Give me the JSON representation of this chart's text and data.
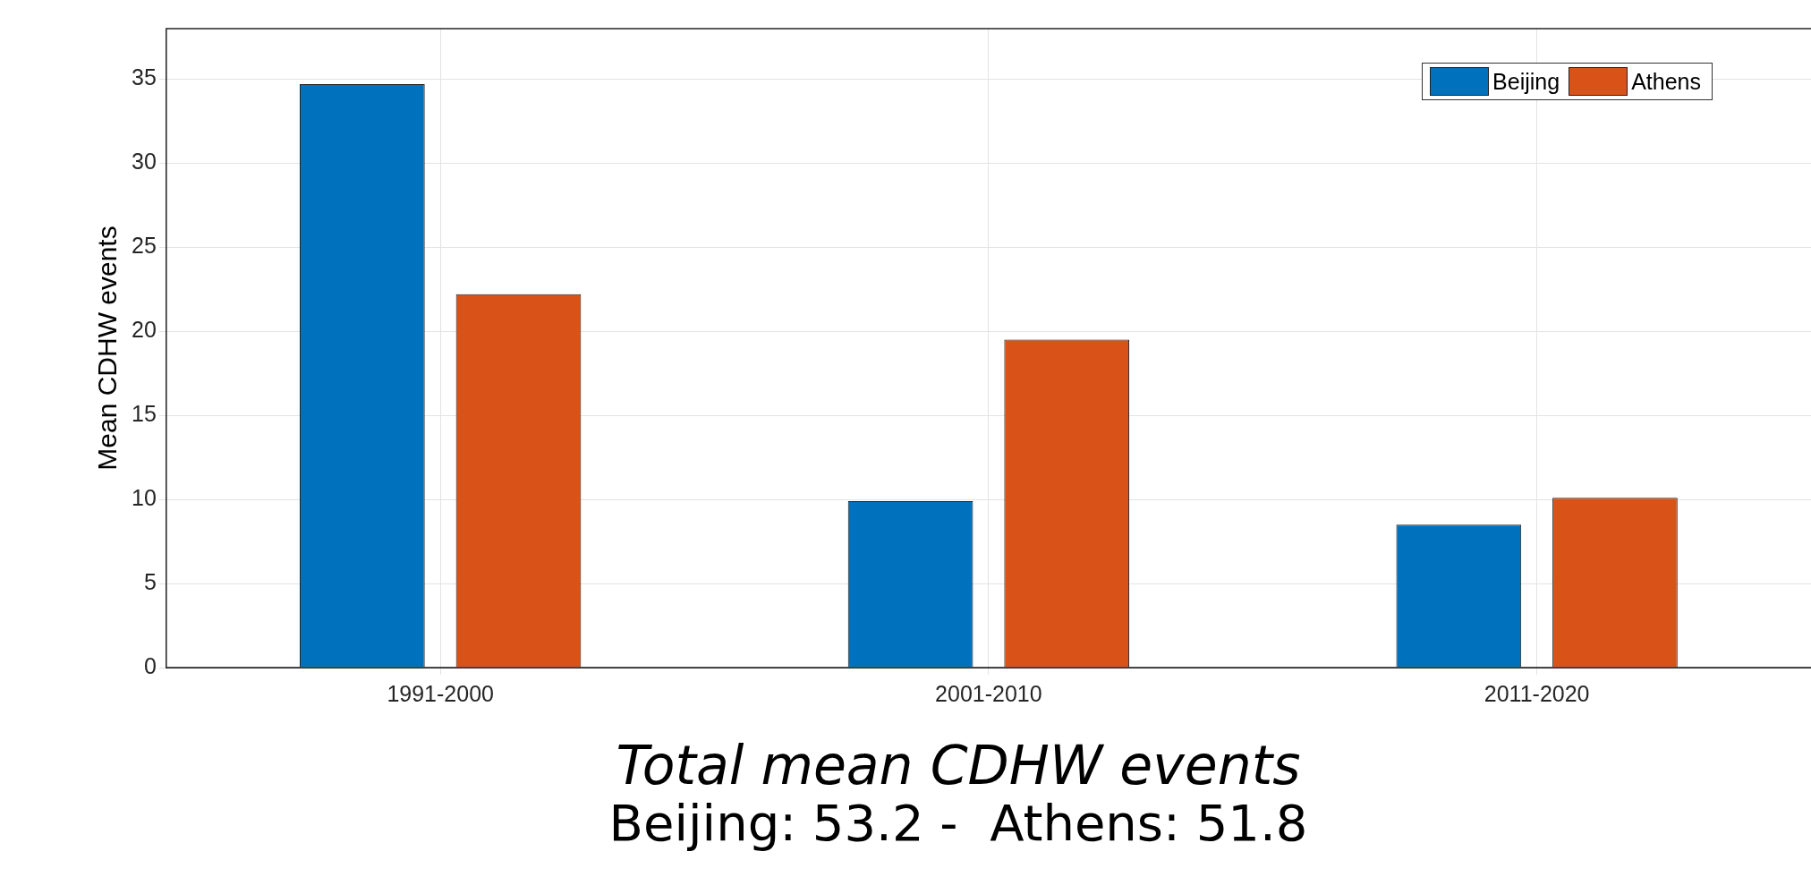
{
  "chart_data": {
    "type": "bar",
    "ylabel": "Mean CDHW events",
    "categories": [
      "1991-2000",
      "2001-2010",
      "2011-2020"
    ],
    "series": [
      {
        "name": "Beijing",
        "color": "#0072bd",
        "values": [
          34.7,
          9.9,
          8.5
        ]
      },
      {
        "name": "Athens",
        "color": "#d95319",
        "values": [
          22.2,
          19.5,
          10.1
        ]
      }
    ],
    "ylim": [
      0,
      38
    ],
    "yticks": [
      0,
      5,
      10,
      15,
      20,
      25,
      30,
      35
    ],
    "grid": true,
    "legend": "top right",
    "annotations": [
      "Total mean CDHW events",
      "Beijing: 53.2 -  Athens: 51.8"
    ]
  }
}
